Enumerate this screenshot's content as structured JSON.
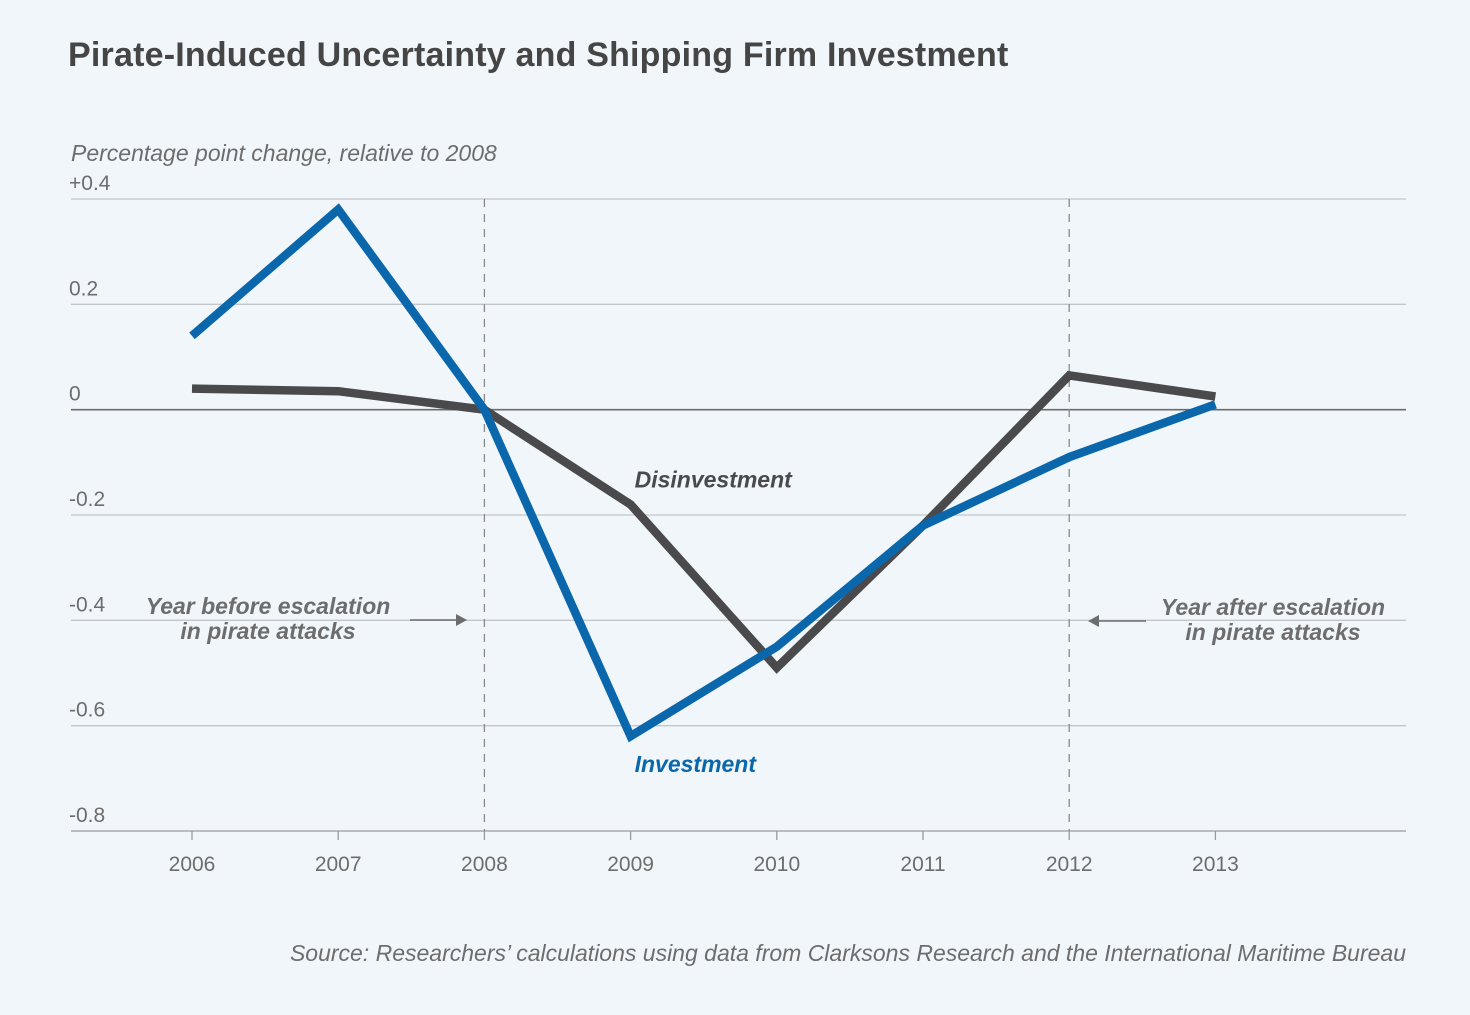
{
  "chart_data": {
    "type": "line",
    "title": "Pirate-Induced Uncertainty and Shipping Firm Investment",
    "ylabel": "Percentage point change, relative to 2008",
    "x": [
      2006,
      2007,
      2008,
      2009,
      2010,
      2011,
      2012,
      2013
    ],
    "xticks": [
      "2006",
      "2007",
      "2008",
      "2009",
      "2010",
      "2011",
      "2012",
      "2013"
    ],
    "ylim": [
      -0.8,
      0.4
    ],
    "yticks": [
      {
        "value": 0.4,
        "label": "+0.4"
      },
      {
        "value": 0.2,
        "label": "0.2"
      },
      {
        "value": 0,
        "label": "0"
      },
      {
        "value": -0.2,
        "label": "-0.2"
      },
      {
        "value": -0.4,
        "label": "-0.4"
      },
      {
        "value": -0.6,
        "label": "-0.6"
      },
      {
        "value": -0.8,
        "label": "-0.8"
      }
    ],
    "series": [
      {
        "name": "Investment",
        "color": "#0b67ab",
        "values": [
          0.14,
          0.38,
          0.0,
          -0.62,
          -0.45,
          -0.22,
          -0.09,
          0.01
        ]
      },
      {
        "name": "Disinvestment",
        "color": "#4a4a4c",
        "values": [
          0.04,
          0.035,
          0.0,
          -0.18,
          -0.49,
          -0.22,
          0.065,
          0.025
        ]
      }
    ],
    "vlines": [
      2008,
      2012
    ],
    "annotations": [
      {
        "text_lines": [
          "Year before escalation",
          "in pirate attacks"
        ],
        "arrow": "right"
      },
      {
        "text_lines": [
          "Year after escalation",
          "in pirate attacks"
        ],
        "arrow": "left"
      }
    ],
    "source": "Source: Researchers’ calculations using data from Clarksons Research and the International Maritime Bureau",
    "grid": true
  }
}
